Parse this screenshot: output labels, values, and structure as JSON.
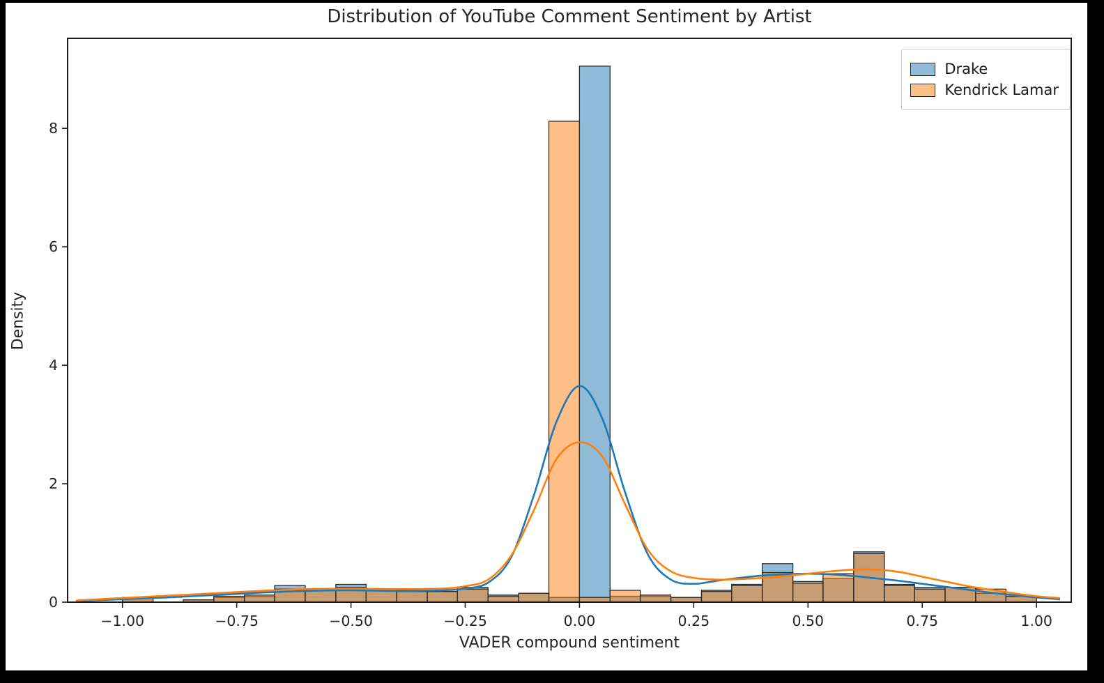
{
  "figure": {
    "frame_color": "#000000",
    "background": "#ffffff",
    "axis_color": "#262626"
  },
  "chart_data": {
    "type": "bar",
    "subtype": "histogram-with-kde",
    "title": "Distribution of YouTube Comment Sentiment by Artist",
    "xlabel": "VADER compound sentiment",
    "ylabel": "Density",
    "xlim": [
      -1.12,
      1.076
    ],
    "ylim": [
      0,
      9.52
    ],
    "grid": false,
    "x_ticks": [
      -1.0,
      -0.75,
      -0.5,
      -0.25,
      0.0,
      0.25,
      0.5,
      0.75,
      1.0
    ],
    "x_tick_labels": [
      "−1.00",
      "−0.75",
      "−0.50",
      "−0.25",
      "0.00",
      "0.25",
      "0.50",
      "0.75",
      "1.00"
    ],
    "y_ticks": [
      0,
      2,
      4,
      6,
      8
    ],
    "y_tick_labels": [
      "0",
      "2",
      "4",
      "6",
      "8"
    ],
    "bin_edges": [
      -1.0,
      -0.933,
      -0.867,
      -0.8,
      -0.733,
      -0.667,
      -0.6,
      -0.533,
      -0.467,
      -0.4,
      -0.333,
      -0.267,
      -0.2,
      -0.133,
      -0.067,
      0.0,
      0.067,
      0.133,
      0.2,
      0.267,
      0.333,
      0.4,
      0.467,
      0.533,
      0.6,
      0.667,
      0.733,
      0.8,
      0.867,
      0.933,
      1.0
    ],
    "bar_alpha": 0.5,
    "bar_edge_color": "#2b2b2b",
    "series": [
      {
        "name": "Drake",
        "color": "#1f77b4",
        "hist": [
          0.08,
          0.0,
          0.04,
          0.08,
          0.1,
          0.28,
          0.2,
          0.3,
          0.22,
          0.2,
          0.18,
          0.25,
          0.12,
          0.15,
          0.08,
          9.05,
          0.1,
          0.1,
          0.08,
          0.2,
          0.3,
          0.65,
          0.35,
          0.4,
          0.85,
          0.3,
          0.25,
          0.25,
          0.15,
          0.1
        ],
        "kde": {
          "x": [
            -1.1,
            -1.0,
            -0.9,
            -0.8,
            -0.7,
            -0.6,
            -0.5,
            -0.4,
            -0.3,
            -0.25,
            -0.2,
            -0.15,
            -0.1,
            -0.05,
            0.0,
            0.05,
            0.1,
            0.15,
            0.2,
            0.25,
            0.3,
            0.35,
            0.4,
            0.45,
            0.5,
            0.55,
            0.6,
            0.65,
            0.7,
            0.75,
            0.8,
            0.85,
            0.9,
            0.95,
            1.0,
            1.05
          ],
          "y": [
            0.02,
            0.05,
            0.08,
            0.12,
            0.16,
            0.19,
            0.2,
            0.19,
            0.2,
            0.23,
            0.33,
            0.75,
            1.8,
            3.05,
            3.65,
            3.1,
            1.85,
            0.8,
            0.38,
            0.31,
            0.36,
            0.41,
            0.45,
            0.47,
            0.48,
            0.47,
            0.44,
            0.4,
            0.36,
            0.31,
            0.26,
            0.21,
            0.16,
            0.12,
            0.08,
            0.05
          ]
        }
      },
      {
        "name": "Kendrick Lamar",
        "color": "#ff7f0e",
        "hist": [
          0.08,
          0.0,
          0.04,
          0.1,
          0.12,
          0.22,
          0.2,
          0.25,
          0.22,
          0.18,
          0.18,
          0.22,
          0.1,
          0.15,
          8.12,
          0.08,
          0.2,
          0.12,
          0.08,
          0.18,
          0.28,
          0.5,
          0.32,
          0.48,
          0.82,
          0.28,
          0.22,
          0.25,
          0.22,
          0.1
        ],
        "kde": {
          "x": [
            -1.1,
            -1.0,
            -0.9,
            -0.8,
            -0.7,
            -0.6,
            -0.5,
            -0.4,
            -0.3,
            -0.25,
            -0.2,
            -0.15,
            -0.1,
            -0.05,
            0.0,
            0.05,
            0.1,
            0.15,
            0.2,
            0.25,
            0.3,
            0.35,
            0.4,
            0.45,
            0.5,
            0.55,
            0.6,
            0.65,
            0.7,
            0.75,
            0.8,
            0.85,
            0.9,
            0.95,
            1.0,
            1.05
          ],
          "y": [
            0.03,
            0.07,
            0.11,
            0.15,
            0.19,
            0.22,
            0.23,
            0.22,
            0.23,
            0.27,
            0.38,
            0.78,
            1.55,
            2.42,
            2.7,
            2.46,
            1.65,
            0.88,
            0.52,
            0.41,
            0.38,
            0.39,
            0.41,
            0.44,
            0.48,
            0.52,
            0.55,
            0.55,
            0.51,
            0.43,
            0.35,
            0.27,
            0.21,
            0.15,
            0.1,
            0.07
          ]
        }
      }
    ],
    "legend": {
      "position": "upper right",
      "entries": [
        "Drake",
        "Kendrick Lamar"
      ]
    }
  }
}
